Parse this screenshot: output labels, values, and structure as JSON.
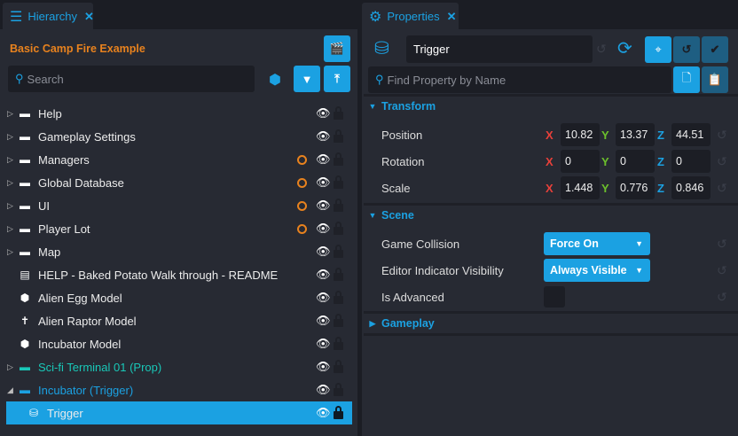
{
  "hierarchy": {
    "tab_label": "Hierarchy",
    "project_title": "Basic Camp Fire Example",
    "search_placeholder": "Search",
    "items": [
      {
        "label": "Help",
        "icon": "folder-icon",
        "expand": "collapsed",
        "modified": false
      },
      {
        "label": "Gameplay Settings",
        "icon": "folder-icon",
        "expand": "collapsed",
        "modified": false
      },
      {
        "label": "Managers",
        "icon": "folder-icon",
        "expand": "collapsed",
        "modified": true
      },
      {
        "label": "Global Database",
        "icon": "folder-icon",
        "expand": "collapsed",
        "modified": true
      },
      {
        "label": "UI",
        "icon": "folder-icon",
        "expand": "collapsed",
        "modified": true
      },
      {
        "label": "Player Lot",
        "icon": "template-folder-icon",
        "expand": "collapsed",
        "modified": true
      },
      {
        "label": "Map",
        "icon": "folder-icon",
        "expand": "collapsed",
        "modified": false
      },
      {
        "label": "HELP - Baked Potato Walk through - README",
        "icon": "script-icon",
        "expand": "none",
        "modified": false
      },
      {
        "label": "Alien Egg Model",
        "icon": "cube-icon",
        "expand": "none",
        "modified": false
      },
      {
        "label": "Alien Raptor Model",
        "icon": "figure-icon",
        "expand": "none",
        "modified": false
      },
      {
        "label": "Incubator Model",
        "icon": "cube-icon",
        "expand": "none",
        "modified": false
      },
      {
        "label": "Sci-fi Terminal 01 (Prop)",
        "icon": "template-folder-icon",
        "expand": "collapsed",
        "modified": false,
        "color": "#19c8b8"
      },
      {
        "label": "Incubator (Trigger)",
        "icon": "template-folder-icon",
        "expand": "expanded",
        "modified": false,
        "color": "#1ba1e2"
      },
      {
        "label": "Trigger",
        "icon": "trigger-icon",
        "expand": "none",
        "modified": false,
        "selected": true,
        "locked": true
      }
    ]
  },
  "properties": {
    "tab_label": "Properties",
    "name_value": "Trigger",
    "search_placeholder": "Find Property by Name",
    "transform": {
      "label": "Transform",
      "rows": [
        {
          "label": "Position",
          "x": "10.82",
          "y": "13.37",
          "z": "44.51"
        },
        {
          "label": "Rotation",
          "x": "0",
          "y": "0",
          "z": "0"
        },
        {
          "label": "Scale",
          "x": "1.448",
          "y": "0.776",
          "z": "0.846"
        }
      ]
    },
    "axis_labels": {
      "x": "X",
      "y": "Y",
      "z": "Z"
    },
    "scene": {
      "label": "Scene",
      "game_collision_label": "Game Collision",
      "game_collision_value": "Force On",
      "editor_visibility_label": "Editor Indicator Visibility",
      "editor_visibility_value": "Always Visible",
      "is_advanced_label": "Is Advanced",
      "is_advanced_checked": false
    },
    "gameplay": {
      "label": "Gameplay"
    }
  },
  "colors": {
    "accent": "#1ba1e2",
    "orange": "#e8821e",
    "teal": "#19c8b8",
    "x_axis": "#e8403a",
    "y_axis": "#6cc02c",
    "z_axis": "#1ba1e2"
  }
}
